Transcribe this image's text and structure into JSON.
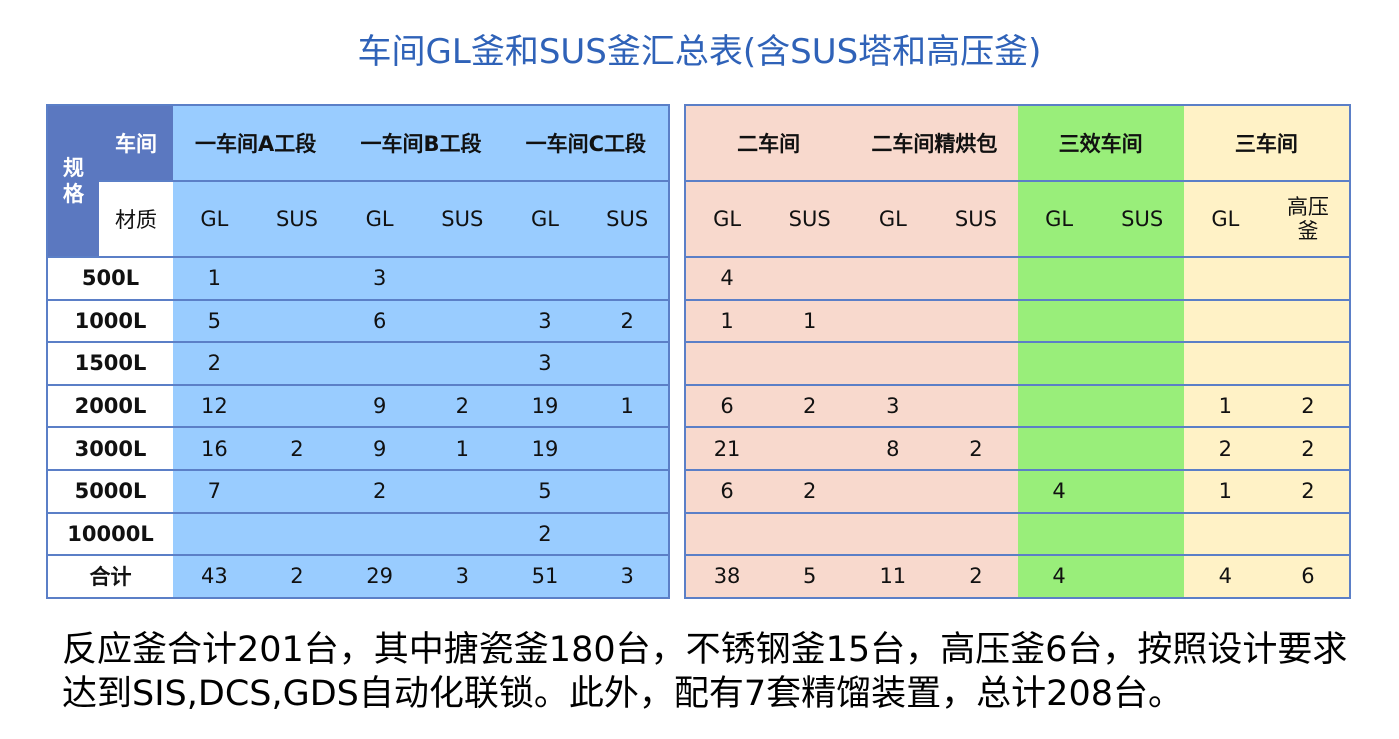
{
  "title": "车间GL釜和SUS釜汇总表(含SUS塔和高压釜)",
  "left_table": {
    "corner_side": "规格",
    "corner_top": "车间",
    "corner_bottom": "材质",
    "groups": [
      {
        "name": "一车间A工段",
        "color": "#99ccff"
      },
      {
        "name": "一车间B工段",
        "color": "#99ccff"
      },
      {
        "name": "一车间C工段",
        "color": "#99ccff"
      }
    ],
    "materials": [
      "GL",
      "SUS",
      "GL",
      "SUS",
      "GL",
      "SUS"
    ],
    "rows": [
      {
        "label": "500L",
        "cells": [
          1,
          null,
          3,
          null,
          null,
          null
        ]
      },
      {
        "label": "1000L",
        "cells": [
          5,
          null,
          6,
          null,
          3,
          2
        ]
      },
      {
        "label": "1500L",
        "cells": [
          2,
          null,
          null,
          null,
          3,
          null
        ]
      },
      {
        "label": "2000L",
        "cells": [
          12,
          null,
          9,
          2,
          19,
          1
        ]
      },
      {
        "label": "3000L",
        "cells": [
          16,
          2,
          9,
          1,
          19,
          null
        ]
      },
      {
        "label": "5000L",
        "cells": [
          7,
          null,
          2,
          null,
          5,
          null
        ]
      },
      {
        "label": "10000L",
        "cells": [
          null,
          null,
          null,
          null,
          2,
          null
        ]
      },
      {
        "label": "合计",
        "cells": [
          43,
          2,
          29,
          3,
          51,
          3
        ]
      }
    ]
  },
  "right_table": {
    "groups": [
      {
        "name": "二车间",
        "color": "#f8d9cd"
      },
      {
        "name": "二车间精烘包",
        "color": "#f8d9cd"
      },
      {
        "name": "三效车间",
        "color": "#99ee7a"
      },
      {
        "name": "三车间",
        "color": "#fff2c6"
      }
    ],
    "materials": [
      "GL",
      "SUS",
      "GL",
      "SUS",
      "GL",
      "SUS",
      "GL",
      "高压釜"
    ],
    "rows": [
      {
        "cells": [
          4,
          null,
          null,
          null,
          null,
          null,
          null,
          null
        ]
      },
      {
        "cells": [
          1,
          1,
          null,
          null,
          null,
          null,
          null,
          null
        ]
      },
      {
        "cells": [
          null,
          null,
          null,
          null,
          null,
          null,
          null,
          null
        ]
      },
      {
        "cells": [
          6,
          2,
          3,
          null,
          null,
          null,
          1,
          2
        ]
      },
      {
        "cells": [
          21,
          null,
          8,
          2,
          null,
          null,
          2,
          2
        ]
      },
      {
        "cells": [
          6,
          2,
          null,
          null,
          4,
          null,
          1,
          2
        ]
      },
      {
        "cells": [
          null,
          null,
          null,
          null,
          null,
          null,
          null,
          null
        ]
      },
      {
        "cells": [
          38,
          5,
          11,
          2,
          4,
          null,
          4,
          6
        ]
      }
    ]
  },
  "note": "反应釜合计201台，其中搪瓷釜180台，不锈钢釜15台，高压釜6台，按照设计要求达到SIS,DCS,GDS自动化联锁。此外，配有7套精馏装置，总计208台。"
}
